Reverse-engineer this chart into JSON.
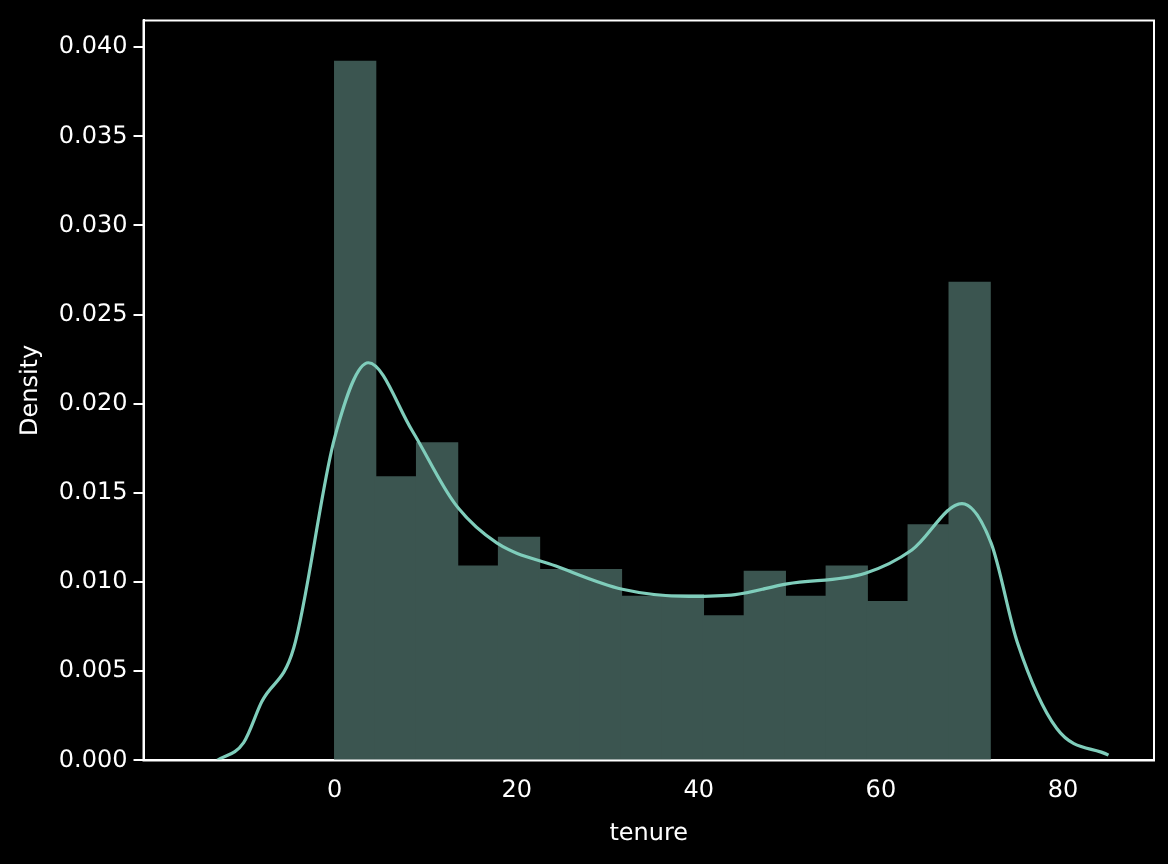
{
  "chart_data": {
    "type": "histogram",
    "xlabel": "tenure",
    "ylabel": "Density",
    "xlim": [
      -21,
      90
    ],
    "ylim": [
      0,
      0.0415
    ],
    "xticks": [
      0,
      20,
      40,
      60,
      80
    ],
    "yticks": [
      {
        "value": 0,
        "label": "0.000"
      },
      {
        "value": 0.005,
        "label": "0.005"
      },
      {
        "value": 0.01,
        "label": "0.010"
      },
      {
        "value": 0.015,
        "label": "0.015"
      },
      {
        "value": 0.02,
        "label": "0.020"
      },
      {
        "value": 0.025,
        "label": "0.025"
      },
      {
        "value": 0.03,
        "label": "0.030"
      },
      {
        "value": 0.035,
        "label": "0.035"
      },
      {
        "value": 0.04,
        "label": "0.040"
      }
    ],
    "grid": false,
    "legend": false,
    "series": [
      {
        "color": "#3b5550",
        "bins": [
          0,
          4.5,
          9,
          13.5,
          18,
          22.5,
          27,
          31.5,
          36,
          40.5,
          45,
          49.5,
          54,
          58.5,
          63,
          67.5,
          72
        ],
        "values": [
          0.0392,
          0.0159,
          0.0178,
          0.0109,
          0.0125,
          0.0107,
          0.0107,
          0.0092,
          0.0093,
          0.0081,
          0.0106,
          0.0092,
          0.0109,
          0.0089,
          0.0132,
          0.0268
        ]
      },
      {
        "type": "line",
        "color": "#7fcdbb",
        "x": [
          -12.9,
          -10,
          -8,
          -4.5,
          0,
          3.7,
          8.5,
          13.2,
          17.8,
          24.3,
          31.6,
          38.9,
          44,
          49.7,
          58.3,
          63.4,
          68.9,
          72.1,
          75,
          79.3,
          85
        ],
        "values": [
          0,
          0.001,
          0.0033,
          0.0063,
          0.0181,
          0.0223,
          0.0185,
          0.0144,
          0.0122,
          0.0109,
          0.0096,
          0.0092,
          0.0093,
          0.0099,
          0.0105,
          0.0118,
          0.0144,
          0.0122,
          0.0066,
          0.0018,
          0.0003
        ]
      }
    ]
  }
}
